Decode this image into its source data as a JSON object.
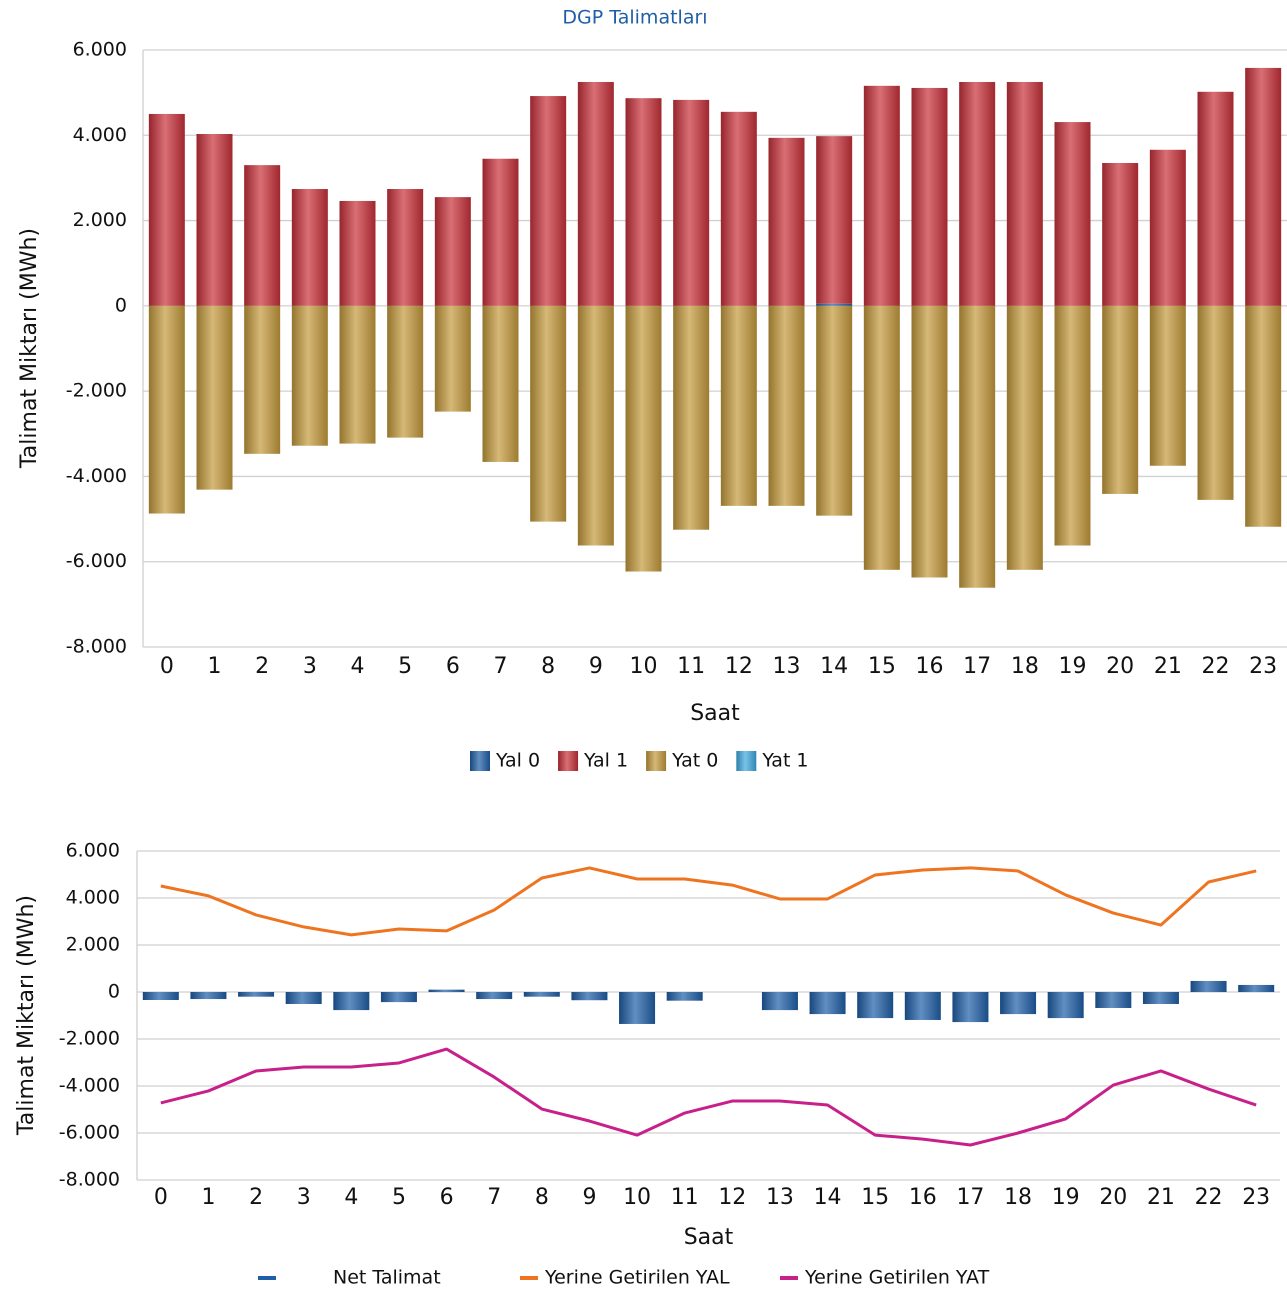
{
  "chart_data": [
    {
      "type": "bar",
      "title": "DGP Talimatları",
      "x_label": "Saat",
      "y_label": "Talimat Miktarı (MWh)",
      "stacked": true,
      "grid": true,
      "categories": [
        "0",
        "1",
        "2",
        "3",
        "4",
        "5",
        "6",
        "7",
        "8",
        "9",
        "10",
        "11",
        "12",
        "13",
        "14",
        "15",
        "16",
        "17",
        "18",
        "19",
        "20",
        "21",
        "22",
        "23"
      ],
      "ylim": [
        -8000,
        6000
      ],
      "yticks": [
        {
          "value": -8000,
          "label": "-8.000"
        },
        {
          "value": -6000,
          "label": "-6.000"
        },
        {
          "value": -4000,
          "label": "-4.000"
        },
        {
          "value": -2000,
          "label": "-2.000"
        },
        0,
        {
          "value": 2000,
          "label": "2.000"
        },
        {
          "value": 4000,
          "label": "4.000"
        },
        {
          "value": 6000,
          "label": "6.000"
        }
      ],
      "series": [
        {
          "name": "Yal 0",
          "color": "#1f5fa8",
          "values": [
            0,
            0,
            0,
            0,
            0,
            0,
            0,
            0,
            0,
            0,
            0,
            0,
            0,
            0,
            50,
            0,
            0,
            0,
            0,
            0,
            0,
            0,
            0,
            0
          ]
        },
        {
          "name": "Yal 1",
          "color": "#c8313a",
          "values": [
            4500,
            4030,
            3300,
            2740,
            2460,
            2740,
            2550,
            3450,
            4920,
            5250,
            4870,
            4830,
            4550,
            3940,
            3930,
            5160,
            5110,
            5250,
            5250,
            4310,
            3350,
            3660,
            5020,
            5580
          ]
        },
        {
          "name": "Yat 0",
          "color": "#c49a3c",
          "values": [
            -4870,
            -4310,
            -3470,
            -3280,
            -3230,
            -3090,
            -2480,
            -3660,
            -5060,
            -5620,
            -6230,
            -5250,
            -4690,
            -4690,
            -4920,
            -6190,
            -6370,
            -6610,
            -6190,
            -5620,
            -4410,
            -3750,
            -4550,
            -5180
          ]
        },
        {
          "name": "Yat 1",
          "color": "#3fa9e0",
          "values": [
            0,
            0,
            0,
            0,
            0,
            0,
            0,
            0,
            0,
            0,
            0,
            0,
            0,
            0,
            0,
            0,
            0,
            0,
            0,
            0,
            0,
            0,
            0,
            0
          ]
        }
      ]
    },
    {
      "type": "combo",
      "x_label": "Saat",
      "y_label": "Talimat Miktarı (MWh)",
      "grid": true,
      "categories": [
        "0",
        "1",
        "2",
        "3",
        "4",
        "5",
        "6",
        "7",
        "8",
        "9",
        "10",
        "11",
        "12",
        "13",
        "14",
        "15",
        "16",
        "17",
        "18",
        "19",
        "20",
        "21",
        "22",
        "23"
      ],
      "ylim": [
        -8000,
        6000
      ],
      "yticks": [
        {
          "value": -8000,
          "label": "-8.000"
        },
        {
          "value": -6000,
          "label": "-6.000"
        },
        {
          "value": -4000,
          "label": "-4.000"
        },
        {
          "value": -2000,
          "label": "-2.000"
        },
        0,
        {
          "value": 2000,
          "label": "2.000"
        },
        {
          "value": 4000,
          "label": "4.000"
        },
        {
          "value": 6000,
          "label": "6.000"
        }
      ],
      "series": [
        {
          "name": "Net Talimat",
          "type": "bar",
          "color": "#1f5fa8",
          "values": [
            -340,
            -300,
            -200,
            -510,
            -770,
            -430,
            100,
            -300,
            -200,
            -350,
            -1360,
            -370,
            0,
            -770,
            -940,
            -1110,
            -1190,
            -1280,
            -940,
            -1110,
            -680,
            -510,
            470,
            300
          ]
        },
        {
          "name": "Yerine Getirilen YAL",
          "type": "line",
          "color": "#ee7420",
          "values": [
            4510,
            4090,
            3280,
            2770,
            2430,
            2680,
            2600,
            3490,
            4850,
            5280,
            4810,
            4810,
            4550,
            3960,
            3960,
            4980,
            5190,
            5280,
            5150,
            4130,
            3360,
            2850,
            4680,
            5150
          ]
        },
        {
          "name": "Yerine Getirilen YAT",
          "type": "line",
          "color": "#c8208a",
          "values": [
            -4720,
            -4210,
            -3360,
            -3190,
            -3190,
            -3020,
            -2430,
            -3620,
            -4980,
            -5490,
            -6090,
            -5150,
            -4640,
            -4640,
            -4810,
            -6090,
            -6260,
            -6510,
            -6000,
            -5400,
            -3960,
            -3360,
            -4130,
            -4810
          ]
        }
      ]
    }
  ]
}
